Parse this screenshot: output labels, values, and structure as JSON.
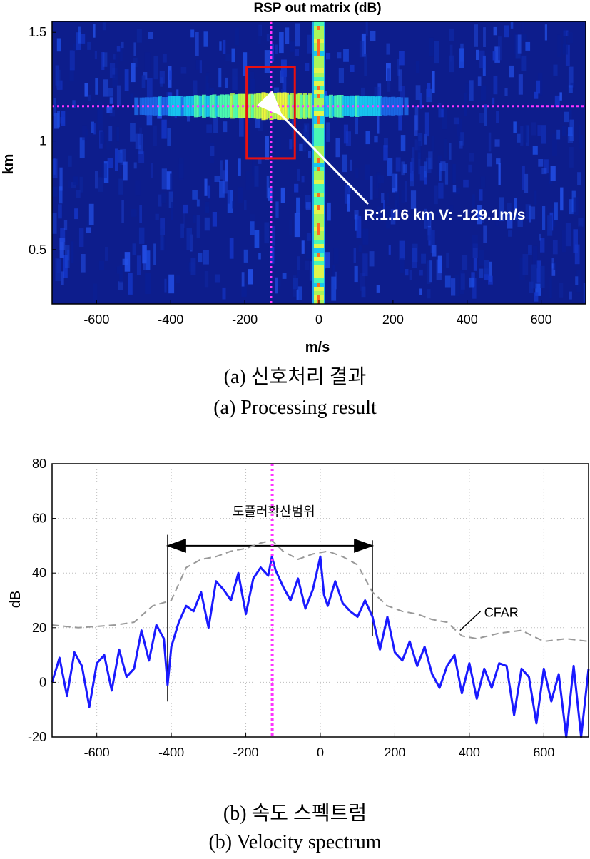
{
  "chart_data": [
    {
      "type": "heatmap",
      "title": "RSP out matrix (dB)",
      "xlabel": "m/s",
      "ylabel": "km",
      "xlim": [
        -720,
        720
      ],
      "ylim": [
        0.25,
        1.55
      ],
      "xticks": [
        -600,
        -400,
        -200,
        0,
        200,
        400,
        600
      ],
      "yticks": [
        0.5,
        1,
        1.5
      ],
      "target": {
        "range_km": 1.16,
        "velocity_ms": -129.1
      },
      "annotation": "R:1.16 km V: -129.1m/s",
      "highlight_box": {
        "x_range": [
          -195,
          -65
        ],
        "y_range": [
          0.92,
          1.34
        ]
      },
      "colors": {
        "background": "#0d1d8c",
        "marker": "#ff33ff",
        "box": "#e81010"
      }
    },
    {
      "type": "line",
      "xlabel": "m/s",
      "ylabel": "dB",
      "xlim": [
        -720,
        720
      ],
      "ylim": [
        -20,
        80
      ],
      "xticks": [
        -600,
        -400,
        -200,
        0,
        200,
        400,
        600
      ],
      "yticks": [
        -20,
        0,
        20,
        40,
        60,
        80
      ],
      "grid": true,
      "annotations": [
        "도플러확산범위",
        "CFAR"
      ],
      "spread_range": [
        -410,
        140
      ],
      "marker_x": -129.1,
      "series": [
        {
          "name": "CFAR",
          "style": "dashed",
          "color": "#999999",
          "x": [
            -720,
            -650,
            -550,
            -500,
            -450,
            -400,
            -360,
            -320,
            -280,
            -240,
            -200,
            -160,
            -130,
            -100,
            -60,
            -20,
            20,
            60,
            100,
            140,
            180,
            220,
            260,
            300,
            340,
            380,
            420,
            480,
            540,
            600,
            660,
            720
          ],
          "y": [
            21,
            20,
            21,
            22,
            28,
            30,
            42,
            45,
            46,
            48,
            49,
            51,
            52,
            48,
            45,
            47,
            48,
            46,
            43,
            33,
            28,
            26,
            25,
            23,
            22,
            17,
            16,
            18,
            19,
            15,
            16,
            15
          ]
        },
        {
          "name": "",
          "style": "solid",
          "color": "#1a1aff",
          "x": [
            -720,
            -700,
            -680,
            -660,
            -640,
            -620,
            -600,
            -580,
            -560,
            -540,
            -520,
            -500,
            -480,
            -460,
            -440,
            -420,
            -410,
            -400,
            -380,
            -360,
            -340,
            -320,
            -300,
            -280,
            -260,
            -240,
            -220,
            -200,
            -180,
            -160,
            -140,
            -130,
            -120,
            -100,
            -80,
            -60,
            -40,
            -20,
            0,
            10,
            20,
            40,
            60,
            80,
            100,
            120,
            140,
            160,
            180,
            200,
            220,
            240,
            260,
            280,
            300,
            320,
            340,
            360,
            380,
            400,
            420,
            440,
            460,
            480,
            500,
            520,
            540,
            560,
            580,
            600,
            620,
            640,
            660,
            680,
            700,
            720
          ],
          "y": [
            0,
            9,
            -5,
            11,
            6,
            -9,
            7,
            10,
            -3,
            12,
            2,
            5,
            19,
            8,
            21,
            16,
            -1,
            13,
            22,
            28,
            26,
            33,
            20,
            37,
            34,
            30,
            40,
            25,
            38,
            42,
            39,
            46,
            41,
            35,
            30,
            38,
            27,
            34,
            46,
            32,
            28,
            37,
            29,
            26,
            24,
            30,
            24,
            12,
            24,
            11,
            8,
            15,
            6,
            13,
            3,
            -2,
            6,
            10,
            -4,
            7,
            -6,
            5,
            -2,
            7,
            6,
            -12,
            5,
            2,
            -15,
            5,
            -7,
            3,
            -20,
            6,
            -20,
            5
          ]
        }
      ]
    }
  ],
  "captions": {
    "a_ko": "(a) 신호처리 결과",
    "a_en": "(a) Processing result",
    "b_ko": "(b) 속도 스펙트럼",
    "b_en": "(b) Velocity spectrum"
  }
}
